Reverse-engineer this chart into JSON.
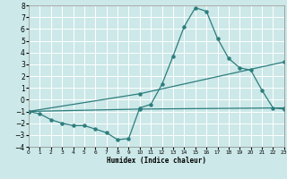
{
  "title": "",
  "xlabel": "Humidex (Indice chaleur)",
  "ylabel": "",
  "bg_color": "#cce8e8",
  "grid_color": "#ffffff",
  "line_color": "#2d7d7d",
  "ylim": [
    -4,
    8
  ],
  "xlim": [
    0,
    23
  ],
  "yticks": [
    -4,
    -3,
    -2,
    -1,
    0,
    1,
    2,
    3,
    4,
    5,
    6,
    7,
    8
  ],
  "xticks": [
    0,
    1,
    2,
    3,
    4,
    5,
    6,
    7,
    8,
    9,
    10,
    11,
    12,
    13,
    14,
    15,
    16,
    17,
    18,
    19,
    20,
    21,
    22,
    23
  ],
  "line1_x": [
    0,
    1,
    2,
    3,
    4,
    5,
    6,
    7,
    8,
    9,
    10,
    11,
    12,
    13,
    14,
    15,
    16,
    17,
    18,
    19,
    20,
    21,
    22,
    23
  ],
  "line1_y": [
    -1.0,
    -1.2,
    -1.7,
    -2.0,
    -2.2,
    -2.2,
    -2.5,
    -2.8,
    -3.4,
    -3.3,
    -0.7,
    -0.4,
    1.3,
    3.7,
    6.2,
    7.8,
    7.5,
    5.2,
    3.5,
    2.7,
    2.5,
    0.8,
    -0.7,
    -0.8
  ],
  "line2_x": [
    0,
    10,
    23
  ],
  "line2_y": [
    -1.0,
    0.5,
    3.2
  ],
  "line3_x": [
    0,
    10,
    23
  ],
  "line3_y": [
    -1.0,
    -0.8,
    -0.7
  ]
}
